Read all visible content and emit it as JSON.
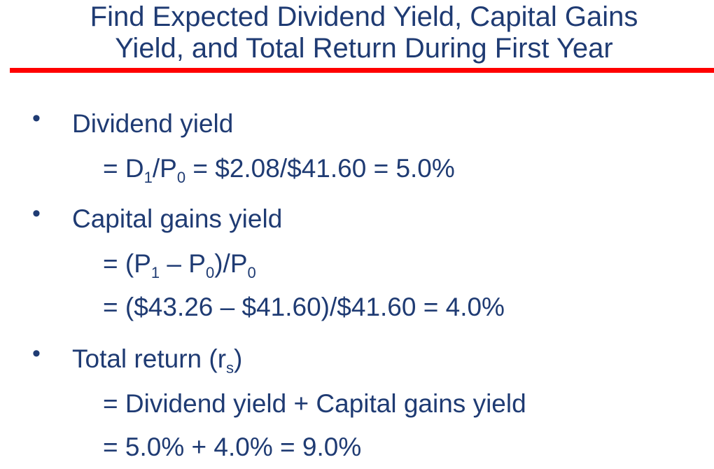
{
  "title": {
    "line1": "Find Expected Dividend Yield, Capital Gains",
    "line2": "Yield, and Total Return During First Year"
  },
  "bullet_symbol": "•",
  "dividend": {
    "heading": "Dividend yield",
    "f_eq": "= D",
    "f_sub1": "1",
    "f_mid": "/P",
    "f_sub2": "0",
    "f_rest": " = $2.08/$41.60 = 5.0%"
  },
  "capital": {
    "heading": "Capital gains yield",
    "f1_a": "= (P",
    "f1_sub1": "1",
    "f1_b": " – P",
    "f1_sub2": "0",
    "f1_c": ")/P",
    "f1_sub3": "0",
    "f2": "= ($43.26 – $41.60)/$41.60 = 4.0%"
  },
  "total": {
    "heading_a": "Total return (r",
    "heading_sub": "s",
    "heading_b": ")",
    "f1": "= Dividend yield + Capital gains yield",
    "f2": "= 5.0% + 4.0% = 9.0%"
  },
  "colors": {
    "text": "#1f3b73",
    "rule": "#ff0000",
    "background": "#ffffff"
  }
}
